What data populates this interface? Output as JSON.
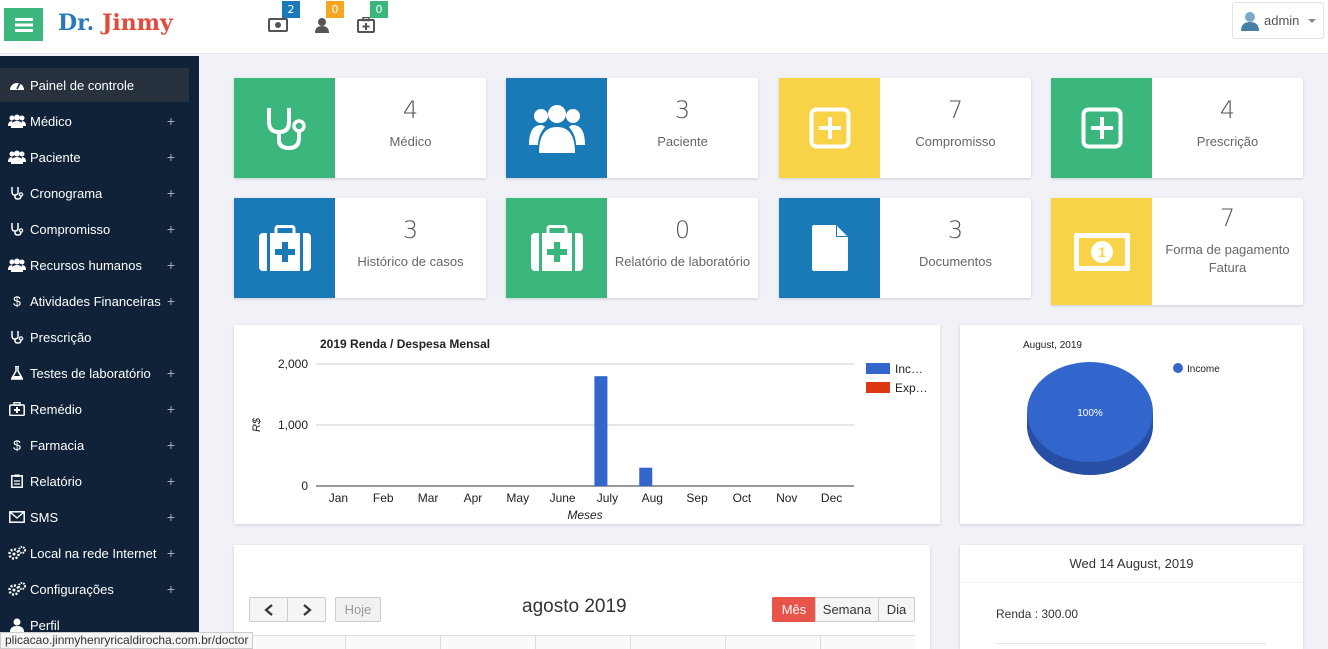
{
  "brand": {
    "first": "Dr.",
    "second": "Jinmy"
  },
  "header_icons": [
    {
      "icon": "money-icon",
      "badge": "2",
      "color": "#1a7ab8"
    },
    {
      "icon": "user-icon",
      "badge": "0",
      "color": "#f5a623"
    },
    {
      "icon": "medkit-icon",
      "badge": "0",
      "color": "#3bb77e"
    }
  ],
  "user": {
    "name": "admin"
  },
  "sidebar": {
    "items": [
      {
        "label": "Painel de controle",
        "icon": "dashboard-icon",
        "plus": ""
      },
      {
        "label": "Médico",
        "icon": "users-icon",
        "plus": "+"
      },
      {
        "label": "Paciente",
        "icon": "users-icon",
        "plus": "+"
      },
      {
        "label": "Cronograma",
        "icon": "stethoscope-icon",
        "plus": "+"
      },
      {
        "label": "Compromisso",
        "icon": "stethoscope-icon",
        "plus": "+"
      },
      {
        "label": "Recursos humanos",
        "icon": "users-icon",
        "plus": "+"
      },
      {
        "label": "Atividades Financeiras",
        "icon": "dollar-icon",
        "plus": "+"
      },
      {
        "label": "Prescrição",
        "icon": "stethoscope-icon",
        "plus": ""
      },
      {
        "label": "Testes de laboratório",
        "icon": "flask-icon",
        "plus": "+"
      },
      {
        "label": "Remédio",
        "icon": "medkit-icon",
        "plus": "+"
      },
      {
        "label": "Farmacia",
        "icon": "dollar-icon",
        "plus": "+"
      },
      {
        "label": "Relatório",
        "icon": "clipboard-icon",
        "plus": "+"
      },
      {
        "label": "SMS",
        "icon": "envelope-icon",
        "plus": "+"
      },
      {
        "label": "Local na rede Internet",
        "icon": "cogs-icon",
        "plus": "+"
      },
      {
        "label": "Configurações",
        "icon": "cogs-icon",
        "plus": "+"
      },
      {
        "label": "Perfil",
        "icon": "user-icon",
        "plus": ""
      }
    ]
  },
  "stats": [
    {
      "value": "4",
      "label": "Médico",
      "icon": "stethoscope-icon",
      "color": "#3bb77e"
    },
    {
      "value": "3",
      "label": "Paciente",
      "icon": "users-icon",
      "color": "#1a7ab8"
    },
    {
      "value": "7",
      "label": "Compromisso",
      "icon": "plus-square-icon",
      "color": "#f8d347"
    },
    {
      "value": "4",
      "label": "Prescrição",
      "icon": "plus-square-icon",
      "color": "#3bb77e"
    },
    {
      "value": "3",
      "label": "Histórico de casos",
      "icon": "medkit-icon",
      "color": "#1a7ab8"
    },
    {
      "value": "0",
      "label": "Relatório de laboratório",
      "icon": "medkit-icon",
      "color": "#3bb77e"
    },
    {
      "value": "3",
      "label": "Documentos",
      "icon": "file-icon",
      "color": "#1a7ab8"
    },
    {
      "value": "7",
      "label": "Forma de pagamento\nFatura",
      "icon": "money-icon",
      "color": "#f8d347"
    }
  ],
  "chart_data": [
    {
      "type": "bar",
      "title": "2019 Renda / Despesa Mensal",
      "xlabel": "Meses",
      "ylabel": "R$",
      "categories": [
        "Jan",
        "Feb",
        "Mar",
        "Apr",
        "May",
        "June",
        "July",
        "Aug",
        "Sep",
        "Oct",
        "Nov",
        "Dec"
      ],
      "series": [
        {
          "name": "Inc…",
          "color": "#3366cc",
          "values": [
            0,
            0,
            0,
            0,
            0,
            0,
            1800,
            300,
            0,
            0,
            0,
            0
          ]
        },
        {
          "name": "Exp…",
          "color": "#dc3912",
          "values": [
            0,
            0,
            0,
            0,
            0,
            0,
            0,
            0,
            0,
            0,
            0,
            0
          ]
        }
      ],
      "yticks": [
        "0",
        "1,000",
        "2,000"
      ],
      "ylim": [
        0,
        2000
      ],
      "grid": true,
      "legend": "right"
    },
    {
      "type": "pie",
      "title": "August, 2019",
      "slices": [
        {
          "name": "Income",
          "value": 100,
          "label": "100%",
          "color": "#3366cc"
        }
      ],
      "legend": "top-right"
    }
  ],
  "calendar": {
    "title": "agosto 2019",
    "today_label": "Hoje",
    "views": [
      "Mês",
      "Semana",
      "Dia"
    ],
    "active_view": "Mês"
  },
  "summary": {
    "date": "Wed 14 August, 2019",
    "income": "Renda : 300.00"
  },
  "status_url": "plicacao.jinmyhenryricaldirocha.com.br/doctor"
}
